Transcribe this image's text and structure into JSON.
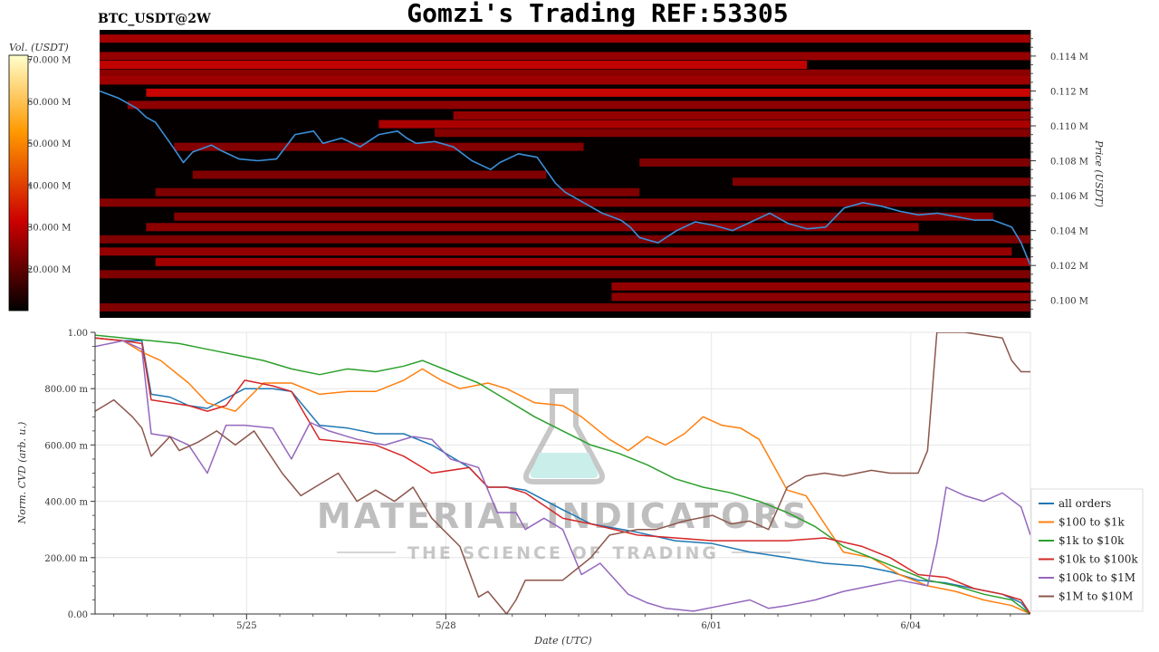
{
  "header": {
    "title": "Gomzi's Trading REF:53305",
    "symbol": "BTC_USDT@2W"
  },
  "watermark": {
    "brand": "MATERIAL INDICATORS",
    "tagline": "THE SCIENCE OF TRADING"
  },
  "colors": {
    "all_orders": "#1f77b4",
    "s100_1k": "#ff7f0e",
    "s1k_10k": "#2ca02c",
    "s10k_100k": "#d62728",
    "s100k_1M": "#9467bd",
    "s1M_10M": "#8c564b",
    "heatmap_bg": "#050000",
    "price_line": "#3a8fd8"
  },
  "chart_data": [
    {
      "type": "heatmap",
      "title": "",
      "colorbar_label": "Vol. (USDT)",
      "colorbar_ticks": [
        "70.000 M",
        "60.000 M",
        "50.000 M",
        "40.000 M",
        "30.000 M",
        "20.000 M"
      ],
      "colorbar_values": [
        70,
        60,
        50,
        40,
        30,
        20
      ],
      "colorbar_range": [
        10,
        71
      ],
      "ylabel": "Price (USDT)",
      "y_ticks": [
        "0.114 M",
        "0.112 M",
        "0.110 M",
        "0.108 M",
        "0.106 M",
        "0.104 M",
        "0.102 M",
        "0.100 M"
      ],
      "y_tick_values": [
        114,
        112,
        110,
        108,
        106,
        104,
        102,
        100
      ],
      "ylim": [
        99.0,
        115.5
      ],
      "xlim": [
        0,
        100
      ],
      "bands": [
        {
          "price": 115.0,
          "start": 0,
          "end": 100,
          "intensity": 0.55
        },
        {
          "price": 114.0,
          "start": 0,
          "end": 100,
          "intensity": 0.45
        },
        {
          "price": 113.5,
          "start": 0,
          "end": 76,
          "intensity": 0.75
        },
        {
          "price": 113.0,
          "start": 0,
          "end": 100,
          "intensity": 0.4
        },
        {
          "price": 112.6,
          "start": 0,
          "end": 100,
          "intensity": 0.5
        },
        {
          "price": 111.9,
          "start": 5,
          "end": 100,
          "intensity": 0.8
        },
        {
          "price": 111.2,
          "start": 3,
          "end": 100,
          "intensity": 0.4
        },
        {
          "price": 110.6,
          "start": 38,
          "end": 100,
          "intensity": 0.45
        },
        {
          "price": 110.1,
          "start": 30,
          "end": 100,
          "intensity": 0.6
        },
        {
          "price": 109.6,
          "start": 36,
          "end": 100,
          "intensity": 0.35
        },
        {
          "price": 108.8,
          "start": 8,
          "end": 52,
          "intensity": 0.35
        },
        {
          "price": 107.9,
          "start": 58,
          "end": 100,
          "intensity": 0.3
        },
        {
          "price": 107.2,
          "start": 10,
          "end": 48,
          "intensity": 0.3
        },
        {
          "price": 106.8,
          "start": 68,
          "end": 100,
          "intensity": 0.3
        },
        {
          "price": 106.2,
          "start": 6,
          "end": 58,
          "intensity": 0.3
        },
        {
          "price": 105.6,
          "start": 0,
          "end": 100,
          "intensity": 0.35
        },
        {
          "price": 104.8,
          "start": 8,
          "end": 96,
          "intensity": 0.35
        },
        {
          "price": 104.2,
          "start": 5,
          "end": 88,
          "intensity": 0.4
        },
        {
          "price": 103.5,
          "start": 0,
          "end": 100,
          "intensity": 0.3
        },
        {
          "price": 102.8,
          "start": 0,
          "end": 98,
          "intensity": 0.45
        },
        {
          "price": 102.2,
          "start": 6,
          "end": 100,
          "intensity": 0.55
        },
        {
          "price": 101.5,
          "start": 0,
          "end": 100,
          "intensity": 0.3
        },
        {
          "price": 100.8,
          "start": 55,
          "end": 100,
          "intensity": 0.45
        },
        {
          "price": 100.2,
          "start": 55,
          "end": 100,
          "intensity": 0.4
        },
        {
          "price": 99.6,
          "start": 0,
          "end": 100,
          "intensity": 0.3
        }
      ],
      "price_series": {
        "name": "",
        "x": [
          0,
          2,
          4,
          5,
          6,
          8,
          9,
          10,
          12,
          13,
          15,
          17,
          19,
          21,
          23,
          24,
          26,
          28,
          30,
          32,
          33,
          34,
          36,
          38,
          40,
          42,
          43,
          45,
          47,
          49,
          50,
          52,
          54,
          56,
          57,
          58,
          60,
          62,
          64,
          66,
          68,
          70,
          72,
          74,
          76,
          78,
          80,
          82,
          84,
          86,
          88,
          90,
          92,
          94,
          96,
          98,
          99,
          100
        ],
        "y": [
          112.0,
          111.6,
          111.0,
          110.5,
          110.2,
          108.7,
          107.9,
          108.5,
          108.9,
          108.6,
          108.1,
          108.0,
          108.1,
          109.5,
          109.7,
          109.0,
          109.3,
          108.8,
          109.5,
          109.7,
          109.3,
          109.0,
          109.1,
          108.8,
          108.0,
          107.5,
          107.9,
          108.4,
          108.2,
          106.7,
          106.2,
          105.6,
          105.0,
          104.6,
          104.2,
          103.6,
          103.3,
          104.0,
          104.5,
          104.3,
          104.0,
          104.5,
          105.0,
          104.4,
          104.1,
          104.2,
          105.3,
          105.6,
          105.4,
          105.1,
          104.9,
          105.0,
          104.8,
          104.6,
          104.6,
          104.2,
          103.3,
          102.0
        ]
      }
    },
    {
      "type": "line",
      "title": "",
      "xlabel": "Date (UTC)",
      "ylabel": "Norm. CVD (arb. u.)",
      "ylim": [
        0,
        1
      ],
      "xlim": [
        0,
        100
      ],
      "y_ticks": [
        "1.00",
        "800.00 m",
        "600.00 m",
        "400.00 m",
        "200.00 m",
        "0.00"
      ],
      "y_tick_values": [
        1.0,
        0.8,
        0.6,
        0.4,
        0.2,
        0.0
      ],
      "x_ticks": [
        "5/25",
        "5/28",
        "6/01",
        "6/04"
      ],
      "x_tick_values": [
        16.2,
        37.5,
        65.9,
        87.2
      ],
      "legend": "right",
      "series": [
        {
          "name": "all orders",
          "color_key": "all_orders",
          "x": [
            0,
            3,
            5,
            6,
            8,
            10,
            12,
            16,
            19,
            21,
            24,
            27,
            30,
            33,
            36,
            40,
            42,
            44,
            46,
            50,
            53,
            58,
            62,
            66,
            70,
            74,
            78,
            82,
            85,
            88,
            91,
            94,
            97,
            99,
            100
          ],
          "y": [
            0.98,
            0.97,
            0.97,
            0.78,
            0.77,
            0.74,
            0.73,
            0.8,
            0.8,
            0.79,
            0.67,
            0.66,
            0.64,
            0.64,
            0.6,
            0.52,
            0.45,
            0.45,
            0.44,
            0.37,
            0.32,
            0.29,
            0.26,
            0.25,
            0.22,
            0.2,
            0.18,
            0.17,
            0.15,
            0.12,
            0.11,
            0.09,
            0.07,
            0.04,
            0.0
          ]
        },
        {
          "name": "$100 to $1k",
          "color_key": "s100_1k",
          "x": [
            0,
            3,
            5,
            7,
            10,
            12,
            15,
            18,
            21,
            24,
            27,
            30,
            33,
            35,
            37,
            39,
            42,
            44,
            47,
            50,
            52,
            55,
            57,
            59,
            61,
            63,
            65,
            67,
            69,
            71,
            73,
            74,
            76,
            78,
            80,
            83,
            86,
            89,
            92,
            95,
            98,
            100
          ],
          "y": [
            0.98,
            0.97,
            0.93,
            0.9,
            0.82,
            0.75,
            0.72,
            0.82,
            0.82,
            0.78,
            0.79,
            0.79,
            0.83,
            0.87,
            0.83,
            0.8,
            0.82,
            0.8,
            0.75,
            0.74,
            0.7,
            0.62,
            0.58,
            0.63,
            0.6,
            0.64,
            0.7,
            0.67,
            0.66,
            0.62,
            0.5,
            0.44,
            0.42,
            0.32,
            0.22,
            0.2,
            0.14,
            0.1,
            0.08,
            0.05,
            0.03,
            0.0
          ]
        },
        {
          "name": "$1k to $10k",
          "color_key": "s1k_10k",
          "x": [
            0,
            3,
            6,
            9,
            12,
            15,
            18,
            21,
            24,
            27,
            30,
            33,
            35,
            38,
            41,
            44,
            47,
            50,
            53,
            56,
            59,
            62,
            65,
            68,
            71,
            74,
            77,
            80,
            83,
            86,
            89,
            92,
            95,
            98,
            100
          ],
          "y": [
            0.99,
            0.98,
            0.97,
            0.96,
            0.94,
            0.92,
            0.9,
            0.87,
            0.85,
            0.87,
            0.86,
            0.88,
            0.9,
            0.86,
            0.82,
            0.76,
            0.7,
            0.65,
            0.6,
            0.57,
            0.53,
            0.48,
            0.45,
            0.43,
            0.4,
            0.36,
            0.31,
            0.24,
            0.2,
            0.16,
            0.12,
            0.1,
            0.07,
            0.05,
            0.0
          ]
        },
        {
          "name": "$10k to $100k",
          "color_key": "s10k_100k",
          "x": [
            0,
            3,
            5,
            6,
            8,
            10,
            12,
            14,
            16,
            19,
            21,
            24,
            27,
            30,
            33,
            36,
            40,
            42,
            44,
            46,
            50,
            53,
            58,
            62,
            66,
            70,
            74,
            78,
            82,
            85,
            88,
            91,
            94,
            97,
            99,
            100
          ],
          "y": [
            0.98,
            0.97,
            0.96,
            0.76,
            0.75,
            0.74,
            0.72,
            0.74,
            0.83,
            0.81,
            0.79,
            0.62,
            0.61,
            0.6,
            0.56,
            0.5,
            0.52,
            0.45,
            0.45,
            0.43,
            0.34,
            0.32,
            0.28,
            0.27,
            0.26,
            0.26,
            0.26,
            0.27,
            0.24,
            0.2,
            0.14,
            0.13,
            0.09,
            0.07,
            0.05,
            0.0
          ]
        },
        {
          "name": "$100k to $1M",
          "color_key": "s100k_1M",
          "x": [
            0,
            3,
            5,
            6,
            8,
            10,
            12,
            14,
            16,
            19,
            21,
            23,
            25,
            28,
            31,
            34,
            36,
            38,
            41,
            43,
            45,
            46,
            48,
            50,
            52,
            54,
            57,
            59,
            61,
            64,
            67,
            70,
            72,
            74,
            77,
            80,
            83,
            86,
            89,
            90,
            91,
            93,
            95,
            97,
            99,
            100
          ],
          "y": [
            0.95,
            0.97,
            0.94,
            0.64,
            0.63,
            0.6,
            0.5,
            0.67,
            0.67,
            0.66,
            0.55,
            0.68,
            0.65,
            0.62,
            0.6,
            0.63,
            0.62,
            0.55,
            0.52,
            0.36,
            0.36,
            0.3,
            0.34,
            0.3,
            0.14,
            0.18,
            0.07,
            0.04,
            0.02,
            0.01,
            0.03,
            0.05,
            0.02,
            0.03,
            0.05,
            0.08,
            0.1,
            0.12,
            0.1,
            0.25,
            0.45,
            0.42,
            0.4,
            0.43,
            0.38,
            0.28
          ]
        },
        {
          "name": "$1M to $10M",
          "color_key": "s1M_10M",
          "x": [
            0,
            2,
            4,
            5,
            6,
            8,
            9,
            11,
            12,
            13,
            15,
            17,
            19,
            20,
            22,
            24,
            26,
            28,
            30,
            32,
            34,
            36,
            39,
            41,
            42,
            44,
            45,
            46,
            48,
            50,
            53,
            55,
            58,
            60,
            63,
            66,
            68,
            70,
            72,
            74,
            76,
            78,
            80,
            83,
            85,
            88,
            89,
            90,
            93,
            97,
            98,
            99,
            100
          ],
          "y": [
            0.72,
            0.76,
            0.7,
            0.66,
            0.56,
            0.63,
            0.58,
            0.61,
            0.63,
            0.65,
            0.6,
            0.65,
            0.55,
            0.5,
            0.42,
            0.46,
            0.5,
            0.4,
            0.44,
            0.4,
            0.45,
            0.34,
            0.24,
            0.06,
            0.08,
            0.0,
            0.05,
            0.12,
            0.12,
            0.12,
            0.2,
            0.28,
            0.3,
            0.3,
            0.33,
            0.35,
            0.32,
            0.33,
            0.3,
            0.45,
            0.49,
            0.5,
            0.49,
            0.51,
            0.5,
            0.5,
            0.58,
            1.0,
            1.0,
            0.98,
            0.9,
            0.86,
            0.86
          ]
        }
      ]
    }
  ]
}
